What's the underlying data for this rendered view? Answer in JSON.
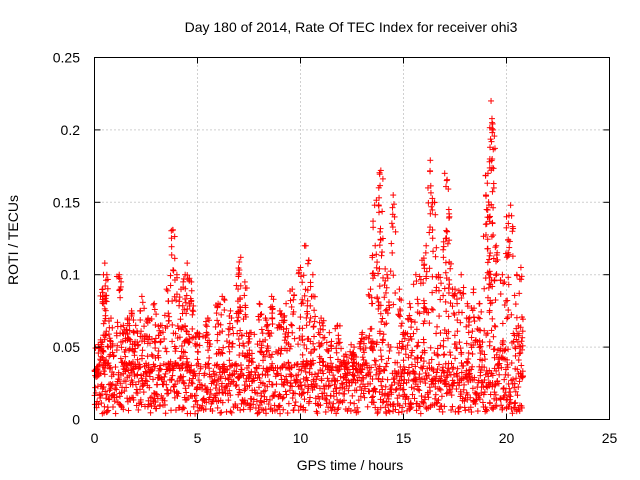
{
  "chart_data": {
    "type": "scatter",
    "title": "Day 180 of 2014, Rate Of TEC Index for receiver ohi3",
    "xlabel": "GPS time / hours",
    "ylabel": "ROTI / TECUs",
    "xlim": [
      0,
      25
    ],
    "ylim": [
      0,
      0.25
    ],
    "xticks": [
      0,
      5,
      10,
      15,
      20,
      25
    ],
    "yticks": [
      0,
      0.05,
      0.1,
      0.15,
      0.2,
      0.25
    ],
    "xtick_labels": [
      "0",
      "5",
      "10",
      "15",
      "20",
      "25"
    ],
    "ytick_labels": [
      "0",
      "0.05",
      "0.1",
      "0.15",
      "0.2",
      "0.25"
    ],
    "grid": true,
    "marker": "plus",
    "color": "#ff0000",
    "data_extent_x": [
      0,
      20.8
    ],
    "series": [
      {
        "points": [
          [
            0.1,
            0.035
          ],
          [
            0.3,
            0.055
          ],
          [
            0.4,
            0.09
          ],
          [
            0.5,
            0.108
          ],
          [
            0.6,
            0.1
          ],
          [
            0.8,
            0.07
          ],
          [
            1.2,
            0.1
          ],
          [
            1.4,
            0.065
          ],
          [
            1.6,
            0.07
          ],
          [
            1.8,
            0.075
          ],
          [
            2.0,
            0.065
          ],
          [
            2.3,
            0.085
          ],
          [
            2.6,
            0.07
          ],
          [
            2.9,
            0.08
          ],
          [
            3.2,
            0.065
          ],
          [
            3.5,
            0.09
          ],
          [
            3.8,
            0.131
          ],
          [
            4.0,
            0.1
          ],
          [
            4.2,
            0.09
          ],
          [
            4.4,
            0.1
          ],
          [
            4.5,
            0.108
          ],
          [
            4.7,
            0.095
          ],
          [
            5.0,
            0.06
          ],
          [
            5.5,
            0.07
          ],
          [
            6.0,
            0.08
          ],
          [
            6.2,
            0.085
          ],
          [
            6.6,
            0.075
          ],
          [
            7.0,
            0.1
          ],
          [
            7.1,
            0.112
          ],
          [
            7.3,
            0.095
          ],
          [
            7.6,
            0.06
          ],
          [
            8.0,
            0.08
          ],
          [
            8.3,
            0.07
          ],
          [
            8.6,
            0.085
          ],
          [
            9.0,
            0.075
          ],
          [
            9.3,
            0.08
          ],
          [
            9.6,
            0.09
          ],
          [
            10.0,
            0.105
          ],
          [
            10.2,
            0.12
          ],
          [
            10.4,
            0.11
          ],
          [
            10.6,
            0.1
          ],
          [
            11.0,
            0.07
          ],
          [
            11.4,
            0.06
          ],
          [
            11.8,
            0.065
          ],
          [
            12.2,
            0.045
          ],
          [
            12.6,
            0.05
          ],
          [
            13.0,
            0.06
          ],
          [
            13.4,
            0.09
          ],
          [
            13.6,
            0.148
          ],
          [
            13.8,
            0.16
          ],
          [
            13.9,
            0.172
          ],
          [
            14.0,
            0.125
          ],
          [
            14.2,
            0.1
          ],
          [
            14.5,
            0.155
          ],
          [
            14.8,
            0.09
          ],
          [
            15.0,
            0.06
          ],
          [
            15.3,
            0.08
          ],
          [
            15.6,
            0.1
          ],
          [
            15.9,
            0.11
          ],
          [
            16.1,
            0.12
          ],
          [
            16.3,
            0.179
          ],
          [
            16.5,
            0.15
          ],
          [
            16.7,
            0.1
          ],
          [
            17.0,
            0.17
          ],
          [
            17.1,
            0.165
          ],
          [
            17.2,
            0.145
          ],
          [
            17.5,
            0.09
          ],
          [
            17.8,
            0.1
          ],
          [
            18.1,
            0.08
          ],
          [
            18.4,
            0.09
          ],
          [
            18.7,
            0.08
          ],
          [
            19.0,
            0.155
          ],
          [
            19.1,
            0.17
          ],
          [
            19.2,
            0.188
          ],
          [
            19.25,
            0.22
          ],
          [
            19.3,
            0.205
          ],
          [
            19.35,
            0.2
          ],
          [
            19.5,
            0.12
          ],
          [
            19.8,
            0.1
          ],
          [
            20.0,
            0.14
          ],
          [
            20.2,
            0.148
          ],
          [
            20.5,
            0.1
          ],
          [
            20.7,
            0.105
          ],
          [
            20.8,
            0.03
          ]
        ]
      }
    ]
  }
}
